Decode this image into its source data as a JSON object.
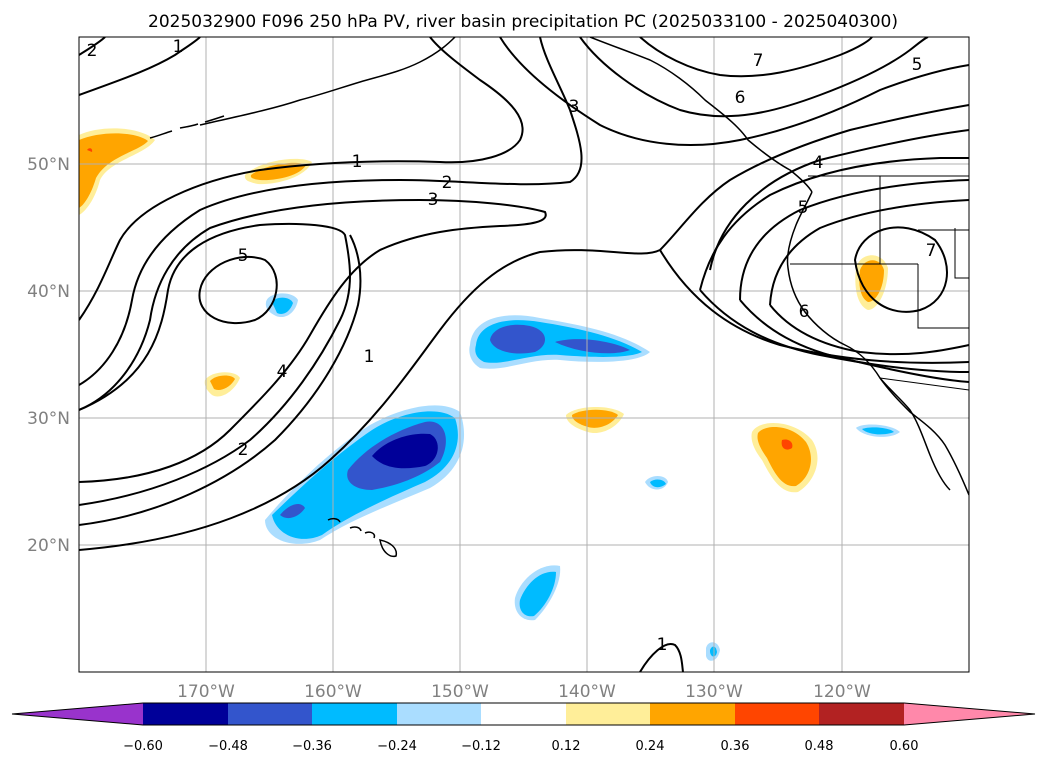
{
  "title": "2025032900 F096 250 hPa PV, river basin precipitation PC (2025033100 - 2025040300)",
  "map": {
    "lon_range": [
      -180,
      -110
    ],
    "lat_range": [
      10,
      60
    ],
    "lat_labels": [
      "20°N",
      "30°N",
      "40°N",
      "50°N"
    ],
    "lon_labels": [
      "170°W",
      "160°W",
      "150°W",
      "140°W",
      "130°W",
      "120°W"
    ],
    "contour_labels": [
      "2",
      "1",
      "1",
      "2",
      "3",
      "5",
      "4",
      "2",
      "1",
      "3",
      "7",
      "6",
      "5",
      "4",
      "5",
      "6",
      "7",
      "1"
    ]
  },
  "colorbar": {
    "colors": [
      "#9933cc",
      "#000099",
      "#3355cc",
      "#00bbff",
      "#aaddff",
      "#ffffff",
      "#ffee99",
      "#ffa500",
      "#ff4500",
      "#b22222",
      "#ff88aa"
    ],
    "tick_labels": [
      "−0.60",
      "−0.48",
      "−0.36",
      "−0.24",
      "−0.12",
      "0.12",
      "0.24",
      "0.36",
      "0.48",
      "0.60"
    ]
  }
}
